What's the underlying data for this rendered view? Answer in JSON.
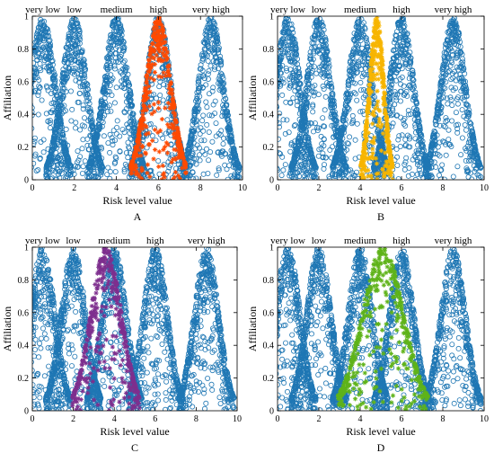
{
  "colors": {
    "background_series": "#1f77b4",
    "panel_A_series": "#ff4a00",
    "panel_B_series": "#f7b500",
    "panel_C_series": "#7e2f8e",
    "panel_D_series": "#5fb319"
  },
  "chart_data": [
    {
      "panel": "A",
      "type": "scatter",
      "xlabel": "Risk level value",
      "ylabel": "Affiliation",
      "xlim": [
        0,
        10
      ],
      "ylim": [
        0,
        1
      ],
      "xticks": [
        "0",
        "2",
        "4",
        "6",
        "8",
        "10"
      ],
      "yticks": [
        "0",
        "0.2",
        "0.4",
        "0.6",
        "0.8",
        "1"
      ],
      "grid": false,
      "categories": [
        {
          "label": "very low",
          "center": 0.5
        },
        {
          "label": "low",
          "center": 2
        },
        {
          "label": "medium",
          "center": 4
        },
        {
          "label": "high",
          "center": 6
        },
        {
          "label": "very high",
          "center": 8.5
        }
      ],
      "background_series": {
        "marker": "circle",
        "centers": [
          0.5,
          2,
          4,
          6,
          8.5
        ],
        "width": 0.6
      },
      "highlight_series": {
        "marker": "asterisk",
        "center": 6,
        "width": 0.6
      }
    },
    {
      "panel": "B",
      "type": "scatter",
      "xlabel": "Risk level value",
      "ylabel": "Affiliation",
      "xlim": [
        0,
        10
      ],
      "ylim": [
        0,
        1
      ],
      "xticks": [
        "0",
        "2",
        "4",
        "6",
        "8",
        "10"
      ],
      "yticks": [
        "0",
        "0.2",
        "0.4",
        "0.6",
        "0.8",
        "1"
      ],
      "grid": false,
      "categories": [
        {
          "label": "very low",
          "center": 0.5
        },
        {
          "label": "low",
          "center": 2
        },
        {
          "label": "medium",
          "center": 4
        },
        {
          "label": "high",
          "center": 6
        },
        {
          "label": "very high",
          "center": 8.5
        }
      ],
      "background_series": {
        "marker": "circle",
        "centers": [
          0.5,
          2,
          4,
          6,
          8.5
        ],
        "width": 0.6
      },
      "highlight_series": {
        "marker": "asterisk",
        "center": 4.8,
        "width": 0.35
      }
    },
    {
      "panel": "C",
      "type": "scatter",
      "xlabel": "Risk level value",
      "ylabel": "Affiliation",
      "xlim": [
        0,
        10
      ],
      "ylim": [
        0,
        1
      ],
      "xticks": [
        "0",
        "2",
        "4",
        "6",
        "8",
        "10"
      ],
      "yticks": [
        "0",
        "0.2",
        "0.4",
        "0.6",
        "0.8",
        "1"
      ],
      "grid": false,
      "categories": [
        {
          "label": "very low",
          "center": 0.5
        },
        {
          "label": "low",
          "center": 2
        },
        {
          "label": "medium",
          "center": 4
        },
        {
          "label": "high",
          "center": 6
        },
        {
          "label": "very high",
          "center": 8.5
        }
      ],
      "background_series": {
        "marker": "circle",
        "centers": [
          0.5,
          2,
          4,
          6,
          8.5
        ],
        "width": 0.6
      },
      "highlight_series": {
        "marker": "asterisk",
        "center": 3.6,
        "width": 0.75
      }
    },
    {
      "panel": "D",
      "type": "scatter",
      "xlabel": "Risk level value",
      "ylabel": "Affiliation",
      "xlim": [
        0,
        10
      ],
      "ylim": [
        0,
        1
      ],
      "xticks": [
        "0",
        "2",
        "4",
        "6",
        "8",
        "10"
      ],
      "yticks": [
        "0",
        "0.2",
        "0.4",
        "0.6",
        "0.8",
        "1"
      ],
      "grid": false,
      "categories": [
        {
          "label": "very low",
          "center": 0.5
        },
        {
          "label": "low",
          "center": 2
        },
        {
          "label": "medium",
          "center": 4
        },
        {
          "label": "high",
          "center": 6
        },
        {
          "label": "very high",
          "center": 8.5
        }
      ],
      "background_series": {
        "marker": "circle",
        "centers": [
          0.5,
          2,
          4,
          6,
          8.5
        ],
        "width": 0.6
      },
      "highlight_series": {
        "marker": "asterisk",
        "center": 5.1,
        "width": 1.0
      }
    }
  ]
}
